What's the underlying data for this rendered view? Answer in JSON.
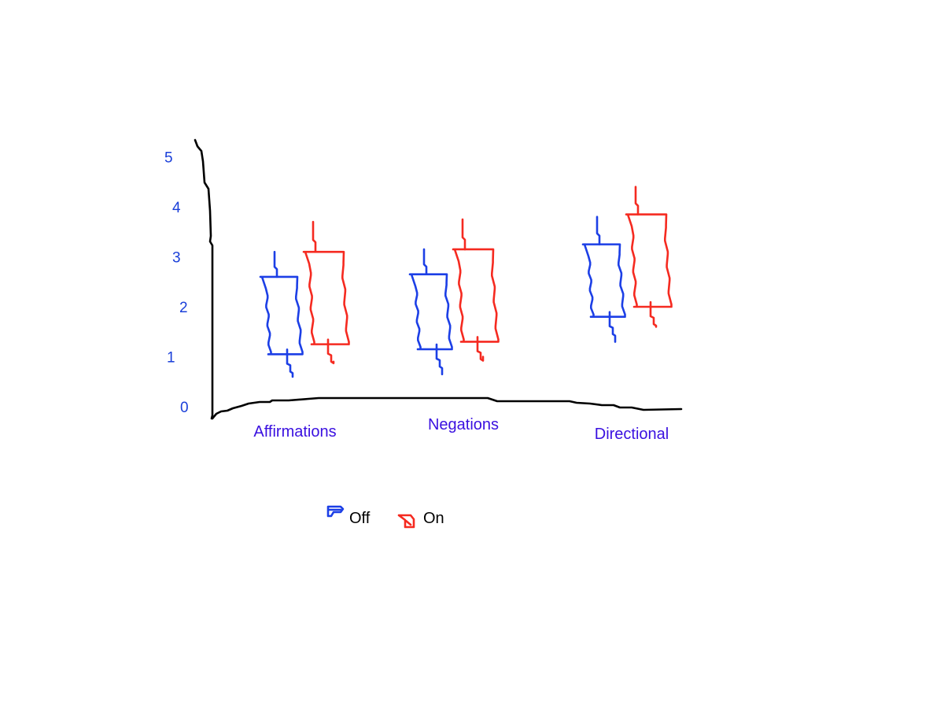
{
  "chart_data": {
    "type": "boxplot",
    "categories": [
      "Affirmations",
      "Negations",
      "Directional"
    ],
    "y_ticks": [
      "0",
      "1",
      "2",
      "3",
      "4",
      "5"
    ],
    "ylim": [
      0,
      5
    ],
    "grid": false,
    "legend_position": "bottom",
    "series": [
      {
        "name": "Off",
        "color": "#1c3fe6",
        "boxes": [
          {
            "min": 0.6,
            "q1": 1.05,
            "median": 1.1,
            "q3": 2.6,
            "max": 3.1
          },
          {
            "min": 0.65,
            "q1": 1.15,
            "median": 1.15,
            "q3": 2.65,
            "max": 3.15
          },
          {
            "min": 1.3,
            "q1": 1.8,
            "median": 1.8,
            "q3": 3.25,
            "max": 3.8
          }
        ]
      },
      {
        "name": "On",
        "color": "#f52a20",
        "boxes": [
          {
            "min": 0.9,
            "q1": 1.25,
            "median": 1.25,
            "q3": 3.1,
            "max": 3.7
          },
          {
            "min": 1.0,
            "q1": 1.3,
            "median": 1.3,
            "q3": 3.15,
            "max": 3.75
          },
          {
            "min": 1.6,
            "q1": 2.0,
            "median": 2.0,
            "q3": 3.85,
            "max": 4.4
          }
        ]
      }
    ]
  }
}
